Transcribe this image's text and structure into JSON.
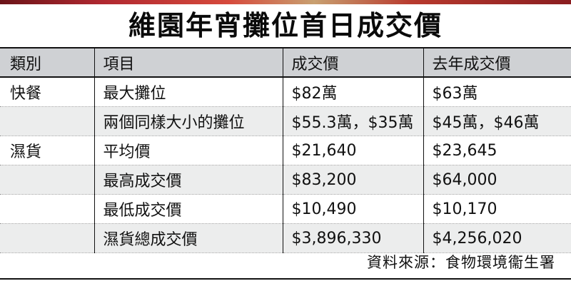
{
  "title": "維園年宵攤位首日成交價",
  "table": {
    "headers": [
      "類別",
      "項目",
      "成交價",
      "去年成交價"
    ],
    "rows": [
      {
        "category": "快餐",
        "item": "最大攤位",
        "price": "$82萬",
        "last_year": "$63萬"
      },
      {
        "category": "",
        "item": "兩個同樣大小的攤位",
        "price": "$55.3萬，$35萬",
        "last_year": "$45萬，$46萬"
      },
      {
        "category": "濕貨",
        "item": "平均價",
        "price": "$21,640",
        "last_year": "$23,645"
      },
      {
        "category": "",
        "item": "最高成交價",
        "price": "$83,200",
        "last_year": "$64,000"
      },
      {
        "category": "",
        "item": "最低成交價",
        "price": "$10,490",
        "last_year": "$10,170"
      },
      {
        "category": "",
        "item": "濕貨總成交價",
        "price": "$3,896,330",
        "last_year": "$4,256,020"
      }
    ]
  },
  "source": "資料來源：食物環境衞生署"
}
